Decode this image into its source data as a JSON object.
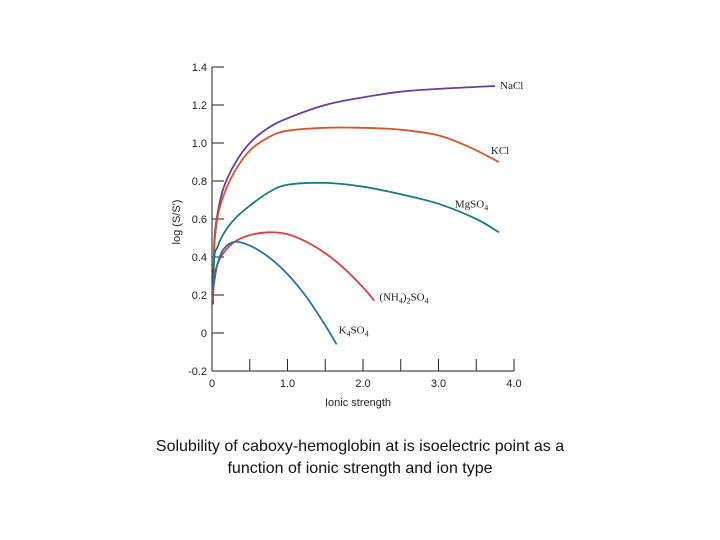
{
  "caption": {
    "line1": "Solubility of caboxy-hemoglobin at is isoelectric point as a",
    "line2": "function of ionic strength and ion type"
  },
  "chart_data": {
    "type": "line",
    "title": "",
    "xlabel": "Ionic strength",
    "ylabel": "log (S/S')",
    "xlim": [
      0,
      4.0
    ],
    "ylim": [
      -0.2,
      1.4
    ],
    "x_ticks": [
      "0",
      "1.0",
      "2.0",
      "3.0",
      "4.0"
    ],
    "y_ticks": [
      "-0.2",
      "0",
      "0.2",
      "0.4",
      "0.6",
      "0.8",
      "1.0",
      "1.2",
      "1.4"
    ],
    "grid": false,
    "series": [
      {
        "name": "NaCl",
        "label_main": "NaCl",
        "label_sub": "",
        "color": "#6a3d9a",
        "points": [
          [
            0.03,
            0.48
          ],
          [
            0.07,
            0.62
          ],
          [
            0.15,
            0.76
          ],
          [
            0.3,
            0.89
          ],
          [
            0.5,
            1.0
          ],
          [
            0.75,
            1.08
          ],
          [
            1.0,
            1.13
          ],
          [
            1.5,
            1.2
          ],
          [
            2.0,
            1.24
          ],
          [
            2.5,
            1.27
          ],
          [
            3.0,
            1.285
          ],
          [
            3.5,
            1.295
          ],
          [
            3.75,
            1.3
          ]
        ]
      },
      {
        "name": "KCl",
        "label_main": "KCl",
        "label_sub": "",
        "color": "#d4552a",
        "points": [
          [
            0.03,
            0.45
          ],
          [
            0.07,
            0.6
          ],
          [
            0.15,
            0.72
          ],
          [
            0.3,
            0.85
          ],
          [
            0.5,
            0.96
          ],
          [
            0.75,
            1.03
          ],
          [
            1.0,
            1.065
          ],
          [
            1.5,
            1.08
          ],
          [
            2.0,
            1.08
          ],
          [
            2.5,
            1.07
          ],
          [
            3.0,
            1.04
          ],
          [
            3.4,
            0.98
          ],
          [
            3.8,
            0.9
          ]
        ]
      },
      {
        "name": "MgSO4",
        "label_main": "MgSO",
        "label_sub": "4",
        "color": "#1a7a84",
        "points": [
          [
            0.03,
            0.4
          ],
          [
            0.07,
            0.45
          ],
          [
            0.15,
            0.52
          ],
          [
            0.3,
            0.6
          ],
          [
            0.5,
            0.67
          ],
          [
            0.75,
            0.74
          ],
          [
            1.0,
            0.78
          ],
          [
            1.5,
            0.79
          ],
          [
            2.0,
            0.77
          ],
          [
            2.5,
            0.73
          ],
          [
            3.0,
            0.68
          ],
          [
            3.5,
            0.6
          ],
          [
            3.8,
            0.53
          ]
        ]
      },
      {
        "name": "(NH4)2SO4",
        "label_main": "(NH",
        "label_sub": "4",
        "label_mid": ")",
        "label_sub2": "2",
        "label_end": "SO",
        "label_sub3": "4",
        "color": "#d94040",
        "points": [
          [
            0.03,
            0.3
          ],
          [
            0.07,
            0.36
          ],
          [
            0.15,
            0.42
          ],
          [
            0.3,
            0.48
          ],
          [
            0.5,
            0.515
          ],
          [
            0.75,
            0.53
          ],
          [
            1.0,
            0.52
          ],
          [
            1.25,
            0.48
          ],
          [
            1.5,
            0.42
          ],
          [
            1.75,
            0.34
          ],
          [
            2.0,
            0.24
          ],
          [
            2.15,
            0.17
          ]
        ]
      },
      {
        "name": "K4SO4",
        "label_main": "K",
        "label_sub": "4",
        "label_end": "SO",
        "label_sub3": "4",
        "color": "#2d6fa8",
        "points": [
          [
            0.03,
            0.27
          ],
          [
            0.07,
            0.36
          ],
          [
            0.15,
            0.44
          ],
          [
            0.3,
            0.48
          ],
          [
            0.5,
            0.46
          ],
          [
            0.75,
            0.4
          ],
          [
            1.0,
            0.31
          ],
          [
            1.25,
            0.19
          ],
          [
            1.5,
            0.04
          ],
          [
            1.65,
            -0.06
          ]
        ]
      }
    ]
  }
}
